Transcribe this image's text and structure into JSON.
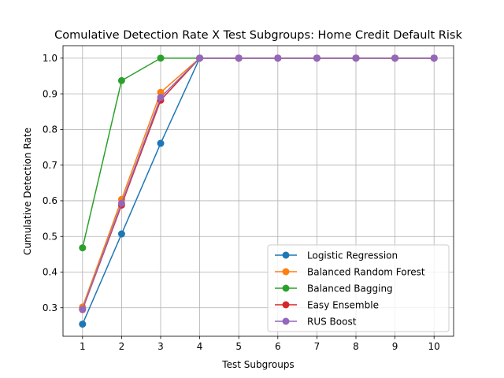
{
  "chart_data": {
    "type": "line",
    "title": "Comulative Detection Rate X Test Subgroups: Home Credit Default Risk",
    "xlabel": "Test Subgroups",
    "ylabel": "Cumulative Detection Rate",
    "x": [
      1,
      2,
      3,
      4,
      5,
      6,
      7,
      8,
      9,
      10
    ],
    "xlim": [
      0.5,
      10.5
    ],
    "ylim": [
      0.22,
      1.035
    ],
    "xticks": [
      "1",
      "2",
      "3",
      "4",
      "5",
      "6",
      "7",
      "8",
      "9",
      "10"
    ],
    "yticks": [
      "0.3",
      "0.4",
      "0.5",
      "0.6",
      "0.7",
      "0.8",
      "0.9",
      "1.0"
    ],
    "ytick_values": [
      0.3,
      0.4,
      0.5,
      0.6,
      0.7,
      0.8,
      0.9,
      1.0
    ],
    "grid": true,
    "legend_position": "lower-right",
    "series": [
      {
        "name": "Logistic Regression",
        "color": "#1f77b4",
        "values": [
          0.254,
          0.507,
          0.761,
          1.0,
          1.0,
          1.0,
          1.0,
          1.0,
          1.0,
          1.0
        ]
      },
      {
        "name": "Balanced Random Forest",
        "color": "#ff7f0e",
        "values": [
          0.302,
          0.604,
          0.904,
          1.0,
          1.0,
          1.0,
          1.0,
          1.0,
          1.0,
          1.0
        ]
      },
      {
        "name": "Balanced Bagging",
        "color": "#2ca02c",
        "values": [
          0.468,
          0.937,
          1.0,
          1.0,
          1.0,
          1.0,
          1.0,
          1.0,
          1.0,
          1.0
        ]
      },
      {
        "name": "Easy Ensemble",
        "color": "#d62728",
        "values": [
          0.295,
          0.588,
          0.882,
          1.0,
          1.0,
          1.0,
          1.0,
          1.0,
          1.0,
          1.0
        ]
      },
      {
        "name": "RUS Boost",
        "color": "#9467bd",
        "values": [
          0.296,
          0.593,
          0.89,
          1.0,
          1.0,
          1.0,
          1.0,
          1.0,
          1.0,
          1.0
        ]
      }
    ]
  }
}
